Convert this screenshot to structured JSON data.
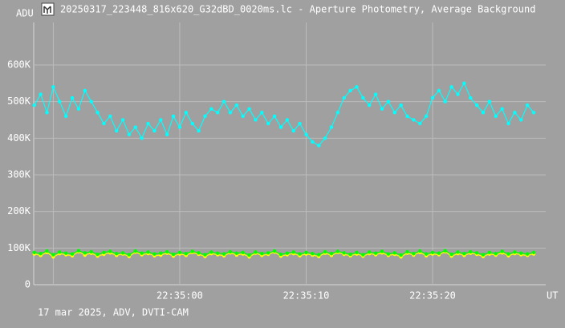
{
  "chart_data": {
    "type": "line",
    "title": "20250317_223448_816x620_G32dBD_0020ms.lc - Aperture Photometry, Average Background",
    "y_label": "ADU",
    "x_label": "UT",
    "footer": "17 mar 2025, ADV, DVTI-CAM",
    "grid": true,
    "xlim": [
      81288.45,
      81328.95
    ],
    "ylim": [
      0,
      716000
    ],
    "xticks": [
      {
        "value": 81290,
        "label": null
      },
      {
        "value": 81300,
        "label": "22:35:00"
      },
      {
        "value": 81310,
        "label": "22:35:10"
      },
      {
        "value": 81320,
        "label": "22:35:20"
      }
    ],
    "yticks": [
      0,
      {
        "value": 100000,
        "label": "100K"
      },
      {
        "value": 200000,
        "label": "200K"
      },
      {
        "value": 300000,
        "label": "300K"
      },
      {
        "value": 400000,
        "label": "400K"
      },
      {
        "value": 500000,
        "label": "500K"
      },
      {
        "value": 600000,
        "label": "600K"
      }
    ],
    "x": [
      81288.5,
      81289,
      81289.5,
      81290,
      81290.5,
      81291,
      81291.5,
      81292,
      81292.5,
      81293,
      81293.5,
      81294,
      81294.5,
      81295,
      81295.5,
      81296,
      81296.5,
      81297,
      81297.5,
      81298,
      81298.5,
      81299,
      81299.5,
      81300,
      81300.5,
      81301,
      81301.5,
      81302,
      81302.5,
      81303,
      81303.5,
      81304,
      81304.5,
      81305,
      81305.5,
      81306,
      81306.5,
      81307,
      81307.5,
      81308,
      81308.5,
      81309,
      81309.5,
      81310,
      81310.5,
      81311,
      81311.5,
      81312,
      81312.5,
      81313,
      81313.5,
      81314,
      81314.5,
      81315,
      81315.5,
      81316,
      81316.5,
      81317,
      81317.5,
      81318,
      81318.5,
      81319,
      81319.5,
      81320,
      81320.5,
      81321,
      81321.5,
      81322,
      81322.5,
      81323,
      81323.5,
      81324,
      81324.5,
      81325,
      81325.5,
      81326,
      81326.5,
      81327,
      81327.5,
      81328
    ],
    "series": [
      {
        "color": "#00ffff",
        "values": [
          490000,
          520000,
          470000,
          540000,
          500000,
          460000,
          510000,
          480000,
          530000,
          500000,
          470000,
          440000,
          460000,
          420000,
          450000,
          410000,
          430000,
          400000,
          440000,
          420000,
          450000,
          410000,
          460000,
          430000,
          470000,
          440000,
          420000,
          460000,
          480000,
          470000,
          500000,
          470000,
          490000,
          460000,
          480000,
          450000,
          470000,
          440000,
          460000,
          430000,
          450000,
          420000,
          440000,
          410000,
          390000,
          380000,
          400000,
          430000,
          470000,
          510000,
          530000,
          540000,
          510000,
          490000,
          520000,
          480000,
          500000,
          470000,
          490000,
          460000,
          450000,
          440000,
          460000,
          510000,
          530000,
          500000,
          540000,
          520000,
          550000,
          510000,
          490000,
          470000,
          500000,
          460000,
          480000,
          440000,
          470000,
          450000,
          490000,
          470000
        ]
      },
      {
        "color": "#ffff00",
        "values": [
          84000,
          80000,
          88000,
          76000,
          85000,
          82000,
          79000,
          90000,
          81000,
          86000,
          78000,
          83000,
          87000,
          80000,
          84000,
          77000,
          89000,
          82000,
          85000,
          79000,
          81000,
          86000,
          78000,
          84000,
          80000,
          88000,
          83000,
          77000,
          85000,
          82000,
          79000,
          87000,
          81000,
          84000,
          76000,
          86000,
          80000,
          83000,
          89000,
          78000,
          82000,
          85000,
          79000,
          84000,
          81000,
          77000,
          86000,
          80000,
          88000,
          83000,
          79000,
          84000,
          78000,
          85000,
          82000,
          87000,
          80000,
          83000,
          76000,
          86000,
          81000,
          88000,
          79000,
          84000,
          82000,
          90000,
          78000,
          85000,
          80000,
          86000,
          83000,
          77000,
          84000,
          81000,
          87000,
          79000,
          85000,
          82000,
          80000,
          84000
        ]
      },
      {
        "color": "#00ff00",
        "values": [
          88000,
          85000,
          92000,
          82000,
          89000,
          86000,
          84000,
          93000,
          87000,
          90000,
          83000,
          88000,
          91000,
          85000,
          87000,
          82000,
          92000,
          86000,
          89000,
          84000,
          86000,
          90000,
          83000,
          88000,
          85000,
          91000,
          87000,
          82000,
          89000,
          86000,
          84000,
          90000,
          86000,
          88000,
          81000,
          89000,
          85000,
          87000,
          92000,
          83000,
          86000,
          89000,
          84000,
          88000,
          85000,
          82000,
          90000,
          85000,
          91000,
          87000,
          83000,
          88000,
          82000,
          89000,
          86000,
          91000,
          84000,
          87000,
          81000,
          90000,
          85000,
          92000,
          84000,
          88000,
          86000,
          93000,
          83000,
          89000,
          85000,
          90000,
          87000,
          82000,
          88000,
          85000,
          91000,
          84000,
          89000,
          86000,
          84000,
          88000
        ]
      }
    ]
  }
}
